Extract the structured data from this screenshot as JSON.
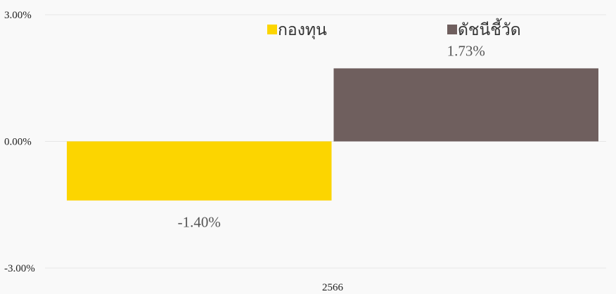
{
  "chart_data": {
    "type": "bar",
    "categories": [
      "2566"
    ],
    "series": [
      {
        "name": "กองทุน",
        "values": [
          -1.4
        ],
        "color": "#fcd500",
        "label": "-1.40%"
      },
      {
        "name": "ดัชนีชี้วัด",
        "values": [
          1.73
        ],
        "color": "#6f5f5e",
        "label": "1.73%"
      }
    ],
    "yticks": [
      {
        "value": 3,
        "label": "3.00%"
      },
      {
        "value": 0,
        "label": "0.00%"
      },
      {
        "value": -3,
        "label": "-3.00%"
      }
    ],
    "ylim": [
      -3,
      3
    ],
    "grid": true,
    "legend_position": "top"
  }
}
